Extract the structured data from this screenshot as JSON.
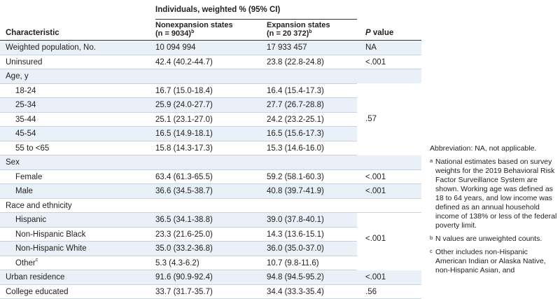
{
  "header": {
    "span_label": "Individuals, weighted % (95% CI)",
    "col_characteristic": "Characteristic",
    "col_nonexp_line1": "Nonexpansion states",
    "col_nonexp_line2": "(n = 9034)",
    "col_nonexp_sup": "b",
    "col_exp_line1": "Expansion states",
    "col_exp_line2": "(n = 20 372)",
    "col_exp_sup": "b",
    "col_p_italic": "P",
    "col_p_rest": " value"
  },
  "rows": [
    {
      "label": "Weighted population, No.",
      "nonexp": "10 094 994",
      "exp": "17 933 457",
      "p": "NA",
      "indent": false,
      "shaded": true
    },
    {
      "label": "Uninsured",
      "nonexp": "42.4 (40.2-44.7)",
      "exp": "23.8 (22.8-24.8)",
      "p": "<.001",
      "indent": false,
      "shaded": false
    },
    {
      "label": "Age, y",
      "nonexp": "",
      "exp": "",
      "p": "",
      "indent": false,
      "shaded": true
    },
    {
      "label": "18-24",
      "nonexp": "16.7 (15.0-18.4)",
      "exp": "16.4 (15.4-17.3)",
      "p": "",
      "indent": true,
      "shaded": false
    },
    {
      "label": "25-34",
      "nonexp": "25.9 (24.0-27.7)",
      "exp": "27.7 (26.7-28.8)",
      "p": "",
      "indent": true,
      "shaded": true
    },
    {
      "label": "35-44",
      "nonexp": "25.1 (23.1-27.0)",
      "exp": "24.2 (23.2-25.1)",
      "p": "",
      "indent": true,
      "shaded": false
    },
    {
      "label": "45-54",
      "nonexp": "16.5 (14.9-18.1)",
      "exp": "16.5 (15.6-17.3)",
      "p": "",
      "indent": true,
      "shaded": true
    },
    {
      "label": "55 to <65",
      "nonexp": "15.8 (14.3-17.3)",
      "exp": "15.3 (14.6-16.0)",
      "p": "",
      "indent": true,
      "shaded": false
    },
    {
      "label": "Sex",
      "nonexp": "",
      "exp": "",
      "p": "",
      "indent": false,
      "shaded": true
    },
    {
      "label": "Female",
      "nonexp": "63.4 (61.3-65.5)",
      "exp": "59.2 (58.1-60.3)",
      "p": "<.001",
      "indent": true,
      "shaded": false
    },
    {
      "label": "Male",
      "nonexp": "36.6 (34.5-38.7)",
      "exp": "40.8 (39.7-41.9)",
      "p": "<.001",
      "indent": true,
      "shaded": true
    },
    {
      "label": "Race and ethnicity",
      "nonexp": "",
      "exp": "",
      "p": "",
      "indent": false,
      "shaded": false
    },
    {
      "label": "Hispanic",
      "nonexp": "36.5 (34.1-38.8)",
      "exp": "39.0 (37.8-40.1)",
      "p": "",
      "indent": true,
      "shaded": true
    },
    {
      "label": "Non-Hispanic Black",
      "nonexp": "23.3 (21.6-25.0)",
      "exp": "14.3 (13.6-15.1)",
      "p": "",
      "indent": true,
      "shaded": false
    },
    {
      "label": "Non-Hispanic White",
      "nonexp": "35.0 (33.2-36.8)",
      "exp": "36.0 (35.0-37.0)",
      "p": "",
      "indent": true,
      "shaded": true
    },
    {
      "label": "Other",
      "label_sup": "c",
      "nonexp": "5.3 (4.3-6.2)",
      "exp": "10.7 (9.8-11.6)",
      "p": "",
      "indent": true,
      "shaded": false
    },
    {
      "label": "Urban residence",
      "nonexp": "91.6 (90.9-92.4)",
      "exp": "94.8 (94.5-95.2)",
      "p": "<.001",
      "indent": false,
      "shaded": true
    },
    {
      "label": "College educated",
      "nonexp": "33.7 (31.7-35.7)",
      "exp": "34.4 (33.3-35.4)",
      "p": ".56",
      "indent": false,
      "shaded": false
    }
  ],
  "merged_p": {
    "age": ".57",
    "race": "<.001"
  },
  "notes": {
    "abbreviation": "Abbreviation: NA, not applicable.",
    "a_sup": "a",
    "a_text": "National estimates based on survey weights for the 2019 Behavioral Risk Factor Surveillance System are shown. Working age was defined as 18 to 64 years, and low income was defined as an annual household income of 138% or less of the federal poverty limit.",
    "b_sup": "b",
    "b_text": "N values are unweighted counts.",
    "c_sup": "c",
    "c_text": "Other includes non-Hispanic American Indian or Alaska Native, non-Hispanic Asian, and"
  }
}
